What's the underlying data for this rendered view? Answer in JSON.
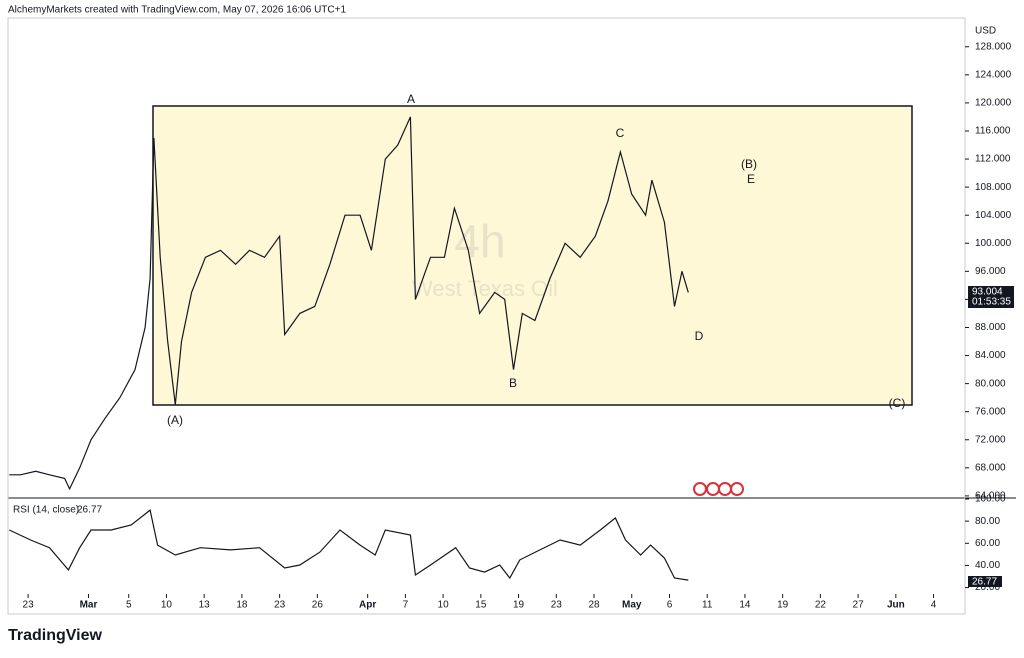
{
  "header": "AlchemyMarkets created with TradingView.com, May 07, 2026 16:06 UTC+1",
  "footer": "TradingView",
  "chart_data": [
    {
      "type": "line",
      "interval": "4h",
      "symbol": "West Texas Oil",
      "currency": "USD",
      "countdown": "01:53:35",
      "color": "#131722",
      "annotations": [
        "A",
        "(A)",
        "B",
        "C",
        "D",
        "(B)",
        "E",
        "(C)"
      ],
      "x": [
        -1.5,
        -0.6,
        0.6,
        1.7,
        2.9,
        3.3,
        4.1,
        5.0,
        6.1,
        7.3,
        8.5,
        9.3,
        9.7,
        10.0,
        10.5,
        11.1,
        11.7,
        12.2,
        13.0,
        14.1,
        15.3,
        16.5,
        17.6,
        18.8,
        20.0,
        20.4,
        21.6,
        22.8,
        24.0,
        25.2,
        26.4,
        27.3,
        28.4,
        29.4,
        30.4,
        30.8,
        32.0,
        33.1,
        33.9,
        35.0,
        35.9,
        37.1,
        37.9,
        38.6,
        39.3,
        40.3,
        41.5,
        42.7,
        43.9,
        45.1,
        46.1,
        47.1,
        48.0,
        49.1,
        49.6,
        50.6,
        51.4,
        52.0,
        52.5
      ],
      "values": [
        67,
        67,
        67.5,
        67,
        66.5,
        65,
        68,
        72,
        75,
        78,
        82,
        88,
        95,
        115,
        98,
        86,
        77,
        86,
        93,
        98,
        99,
        97,
        99,
        98,
        101,
        87,
        90,
        91,
        97,
        104,
        104,
        99,
        112,
        114,
        118,
        92,
        98,
        98,
        105,
        99,
        90,
        93,
        92,
        82,
        90,
        89,
        95,
        100,
        98,
        101,
        106,
        113,
        107,
        104,
        109,
        103,
        91,
        96,
        93.004
      ],
      "xlim": [
        -1.6,
        74.5
      ],
      "ylim": [
        63.7,
        132.1
      ],
      "yticks": [
        {
          "value": 64,
          "label": "64.000"
        },
        {
          "value": 68,
          "label": "68.000"
        },
        {
          "value": 72,
          "label": "72.000"
        },
        {
          "value": 76,
          "label": "76.000"
        },
        {
          "value": 80,
          "label": "80.000"
        },
        {
          "value": 84,
          "label": "84.000"
        },
        {
          "value": 88,
          "label": "88.000"
        },
        {
          "value": 92,
          "label": "92.000"
        },
        {
          "value": 96,
          "label": "96.000"
        },
        {
          "value": 100,
          "label": "100.000"
        },
        {
          "value": 104,
          "label": "104.000"
        },
        {
          "value": 108,
          "label": "108.000"
        },
        {
          "value": 112,
          "label": "112.000"
        },
        {
          "value": 116,
          "label": "116.000"
        },
        {
          "value": 120,
          "label": "120.000"
        },
        {
          "value": 124,
          "label": "124.000"
        },
        {
          "value": 128,
          "label": "128.000"
        }
      ]
    },
    {
      "type": "line",
      "title": "RSI (14, close)",
      "color": "#131722",
      "x": [
        -1.5,
        0.2,
        1.7,
        3.2,
        4.1,
        5.0,
        6.6,
        8.2,
        9.7,
        10.3,
        11.7,
        13.7,
        16.1,
        18.4,
        20.4,
        21.6,
        23.2,
        24.8,
        26.4,
        27.6,
        28.4,
        30.4,
        30.8,
        32.0,
        34.0,
        35.1,
        36.3,
        37.5,
        38.3,
        39.1,
        40.7,
        42.3,
        43.9,
        45.5,
        46.7,
        47.5,
        48.7,
        49.5,
        50.6,
        51.4,
        52.5
      ],
      "values": [
        72,
        63,
        56,
        36,
        56,
        72,
        72,
        76.5,
        90,
        58.4,
        49.4,
        56,
        54,
        56,
        37.7,
        40.4,
        52,
        72,
        58.4,
        49.4,
        72,
        67.5,
        31.4,
        40.4,
        56,
        37.7,
        34,
        40.4,
        28.6,
        45,
        54,
        63,
        58.4,
        72,
        82.8,
        63,
        49.4,
        58.4,
        46.7,
        28.6,
        26.77
      ],
      "xlim": [
        -1.6,
        74.5
      ],
      "ylim": [
        16,
        100
      ],
      "yticks": [
        {
          "value": 20,
          "label": "20.00"
        },
        {
          "value": 40,
          "label": "40.00"
        },
        {
          "value": 60,
          "label": "60.00"
        },
        {
          "value": 80,
          "label": "80.00"
        },
        {
          "value": 100,
          "label": "100.00"
        }
      ],
      "xticks": [
        {
          "value": 0,
          "label": "23"
        },
        {
          "value": 4.8,
          "label": "Mar"
        },
        {
          "value": 8,
          "label": "5"
        },
        {
          "value": 11,
          "label": "10"
        },
        {
          "value": 14,
          "label": "13"
        },
        {
          "value": 17,
          "label": "18"
        },
        {
          "value": 20,
          "label": "23"
        },
        {
          "value": 23,
          "label": "26"
        },
        {
          "value": 27,
          "label": "Apr"
        },
        {
          "value": 30,
          "label": "7"
        },
        {
          "value": 33,
          "label": "10"
        },
        {
          "value": 36,
          "label": "15"
        },
        {
          "value": 39,
          "label": "19"
        },
        {
          "value": 42,
          "label": "23"
        },
        {
          "value": 45,
          "label": "28"
        },
        {
          "value": 48,
          "label": "May"
        },
        {
          "value": 51,
          "label": "6"
        },
        {
          "value": 54,
          "label": "11"
        },
        {
          "value": 57,
          "label": "14"
        },
        {
          "value": 60,
          "label": "19"
        },
        {
          "value": 63,
          "label": "22"
        },
        {
          "value": 66,
          "label": "27"
        },
        {
          "value": 69,
          "label": "Jun"
        },
        {
          "value": 72,
          "label": "4"
        }
      ]
    }
  ]
}
